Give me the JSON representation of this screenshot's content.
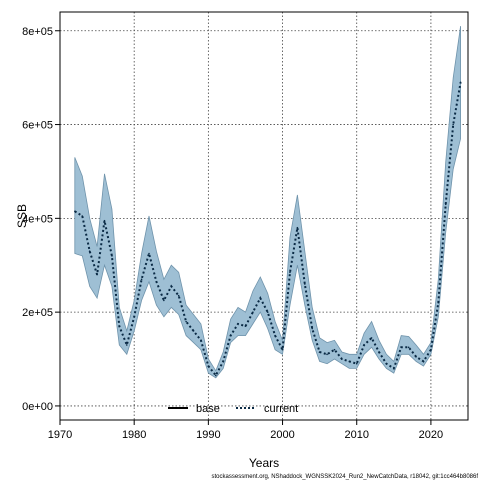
{
  "chart_data": {
    "type": "line",
    "title": "",
    "xlabel": "Years",
    "ylabel": "SSB",
    "xlim": [
      1970,
      2025
    ],
    "ylim": [
      -30000,
      840000
    ],
    "x_ticks": [
      1970,
      1980,
      1990,
      2000,
      2010,
      2020
    ],
    "x_tick_labels": [
      "1970",
      "1980",
      "1990",
      "2000",
      "2010",
      "2020"
    ],
    "y_ticks": [
      0,
      200000,
      400000,
      600000,
      800000
    ],
    "y_tick_labels": [
      "0e+00",
      "2e+05",
      "4e+05",
      "6e+05",
      "8e+05"
    ],
    "grid": true,
    "legend": {
      "placement": "bottom-center",
      "entries": [
        {
          "name": "base",
          "style": "solid",
          "color": "#000000"
        },
        {
          "name": "current",
          "style": "dotted",
          "color": "#1f6fb4"
        }
      ]
    },
    "x": [
      1972,
      1973,
      1974,
      1975,
      1976,
      1977,
      1978,
      1979,
      1980,
      1981,
      1982,
      1983,
      1984,
      1985,
      1986,
      1987,
      1988,
      1989,
      1990,
      1991,
      1992,
      1993,
      1994,
      1995,
      1996,
      1997,
      1998,
      1999,
      2000,
      2001,
      2002,
      2003,
      2004,
      2005,
      2006,
      2007,
      2008,
      2009,
      2010,
      2011,
      2012,
      2013,
      2014,
      2015,
      2016,
      2017,
      2018,
      2019,
      2020,
      2021,
      2022,
      2023,
      2024
    ],
    "series": [
      {
        "name": "current",
        "color": "#1a3a5c",
        "band_color": "#9ebfd4",
        "values": [
          415000,
          405000,
          330000,
          280000,
          395000,
          320000,
          170000,
          130000,
          190000,
          270000,
          325000,
          265000,
          225000,
          255000,
          235000,
          180000,
          160000,
          140000,
          85000,
          65000,
          95000,
          150000,
          175000,
          170000,
          200000,
          230000,
          200000,
          150000,
          120000,
          285000,
          380000,
          260000,
          165000,
          115000,
          110000,
          120000,
          100000,
          95000,
          90000,
          130000,
          145000,
          115000,
          90000,
          80000,
          125000,
          125000,
          105000,
          95000,
          120000,
          220000,
          430000,
          600000,
          690000
        ],
        "lower": [
          325000,
          320000,
          255000,
          230000,
          300000,
          255000,
          130000,
          110000,
          160000,
          225000,
          265000,
          215000,
          190000,
          210000,
          195000,
          150000,
          135000,
          120000,
          70000,
          60000,
          80000,
          135000,
          150000,
          150000,
          175000,
          200000,
          165000,
          120000,
          110000,
          215000,
          300000,
          215000,
          140000,
          95000,
          90000,
          100000,
          90000,
          80000,
          80000,
          110000,
          125000,
          100000,
          80000,
          70000,
          110000,
          110000,
          95000,
          85000,
          110000,
          190000,
          370000,
          505000,
          570000
        ],
        "upper": [
          530000,
          490000,
          400000,
          340000,
          495000,
          420000,
          210000,
          160000,
          225000,
          325000,
          405000,
          330000,
          270000,
          300000,
          285000,
          215000,
          195000,
          175000,
          100000,
          75000,
          115000,
          185000,
          210000,
          200000,
          245000,
          275000,
          240000,
          180000,
          140000,
          360000,
          450000,
          330000,
          210000,
          145000,
          135000,
          140000,
          115000,
          110000,
          110000,
          155000,
          180000,
          140000,
          110000,
          95000,
          150000,
          148000,
          130000,
          110000,
          135000,
          270000,
          520000,
          700000,
          810000
        ]
      }
    ]
  },
  "caption": "stockassessment.org, NShaddock_WGNSSK2024_Run2_NewCatchData, r18042, git:1cc464b8086f"
}
